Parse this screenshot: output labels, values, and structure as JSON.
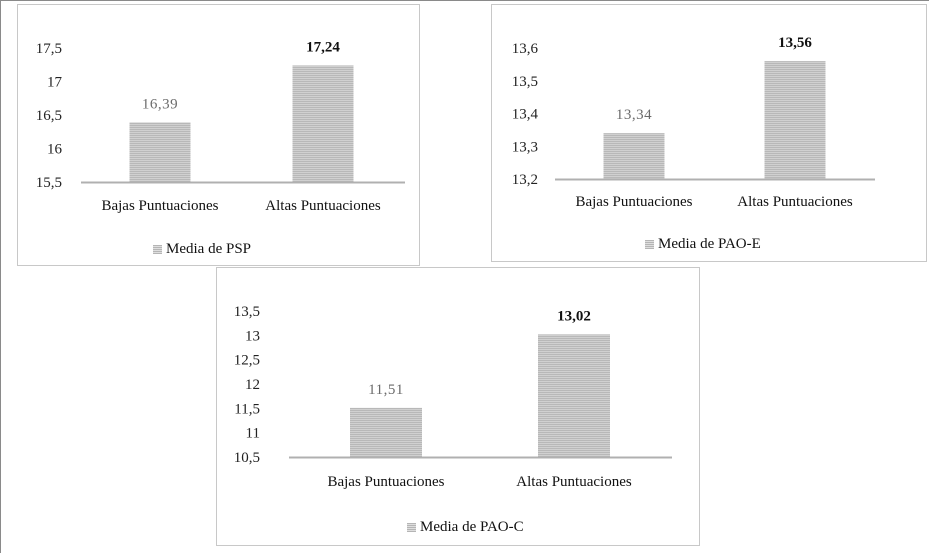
{
  "colors": {
    "bar_fill": "#d0d0d0",
    "bar_stripe": "#b8b8b8",
    "axis": "#b0b0b0"
  },
  "chart_data": [
    {
      "type": "bar",
      "categories": [
        "Bajas Puntuaciones",
        "Altas Puntuaciones"
      ],
      "series": [
        {
          "name": "Media de PSP",
          "values": [
            16.39,
            17.24
          ]
        }
      ],
      "value_labels": [
        "16,39",
        "17,24"
      ],
      "yticks": [
        "15,5",
        "16",
        "16,5",
        "17",
        "17,5"
      ],
      "ylim": [
        15.5,
        17.5
      ],
      "grid": false,
      "legend": "bottom"
    },
    {
      "type": "bar",
      "categories": [
        "Bajas Puntuaciones",
        "Altas Puntuaciones"
      ],
      "series": [
        {
          "name": "Media de PAO-E",
          "values": [
            13.34,
            13.56
          ]
        }
      ],
      "value_labels": [
        "13,34",
        "13,56"
      ],
      "yticks": [
        "13,2",
        "13,3",
        "13,4",
        "13,5",
        "13,6"
      ],
      "ylim": [
        13.2,
        13.6
      ],
      "grid": false,
      "legend": "bottom"
    },
    {
      "type": "bar",
      "categories": [
        "Bajas Puntuaciones",
        "Altas Puntuaciones"
      ],
      "series": [
        {
          "name": "Media de PAO-C",
          "values": [
            11.51,
            13.02
          ]
        }
      ],
      "value_labels": [
        "11,51",
        "13,02"
      ],
      "yticks": [
        "10,5",
        "11",
        "11,5",
        "12",
        "12,5",
        "13",
        "13,5"
      ],
      "ylim": [
        10.5,
        13.5
      ],
      "grid": false,
      "legend": "bottom"
    }
  ]
}
